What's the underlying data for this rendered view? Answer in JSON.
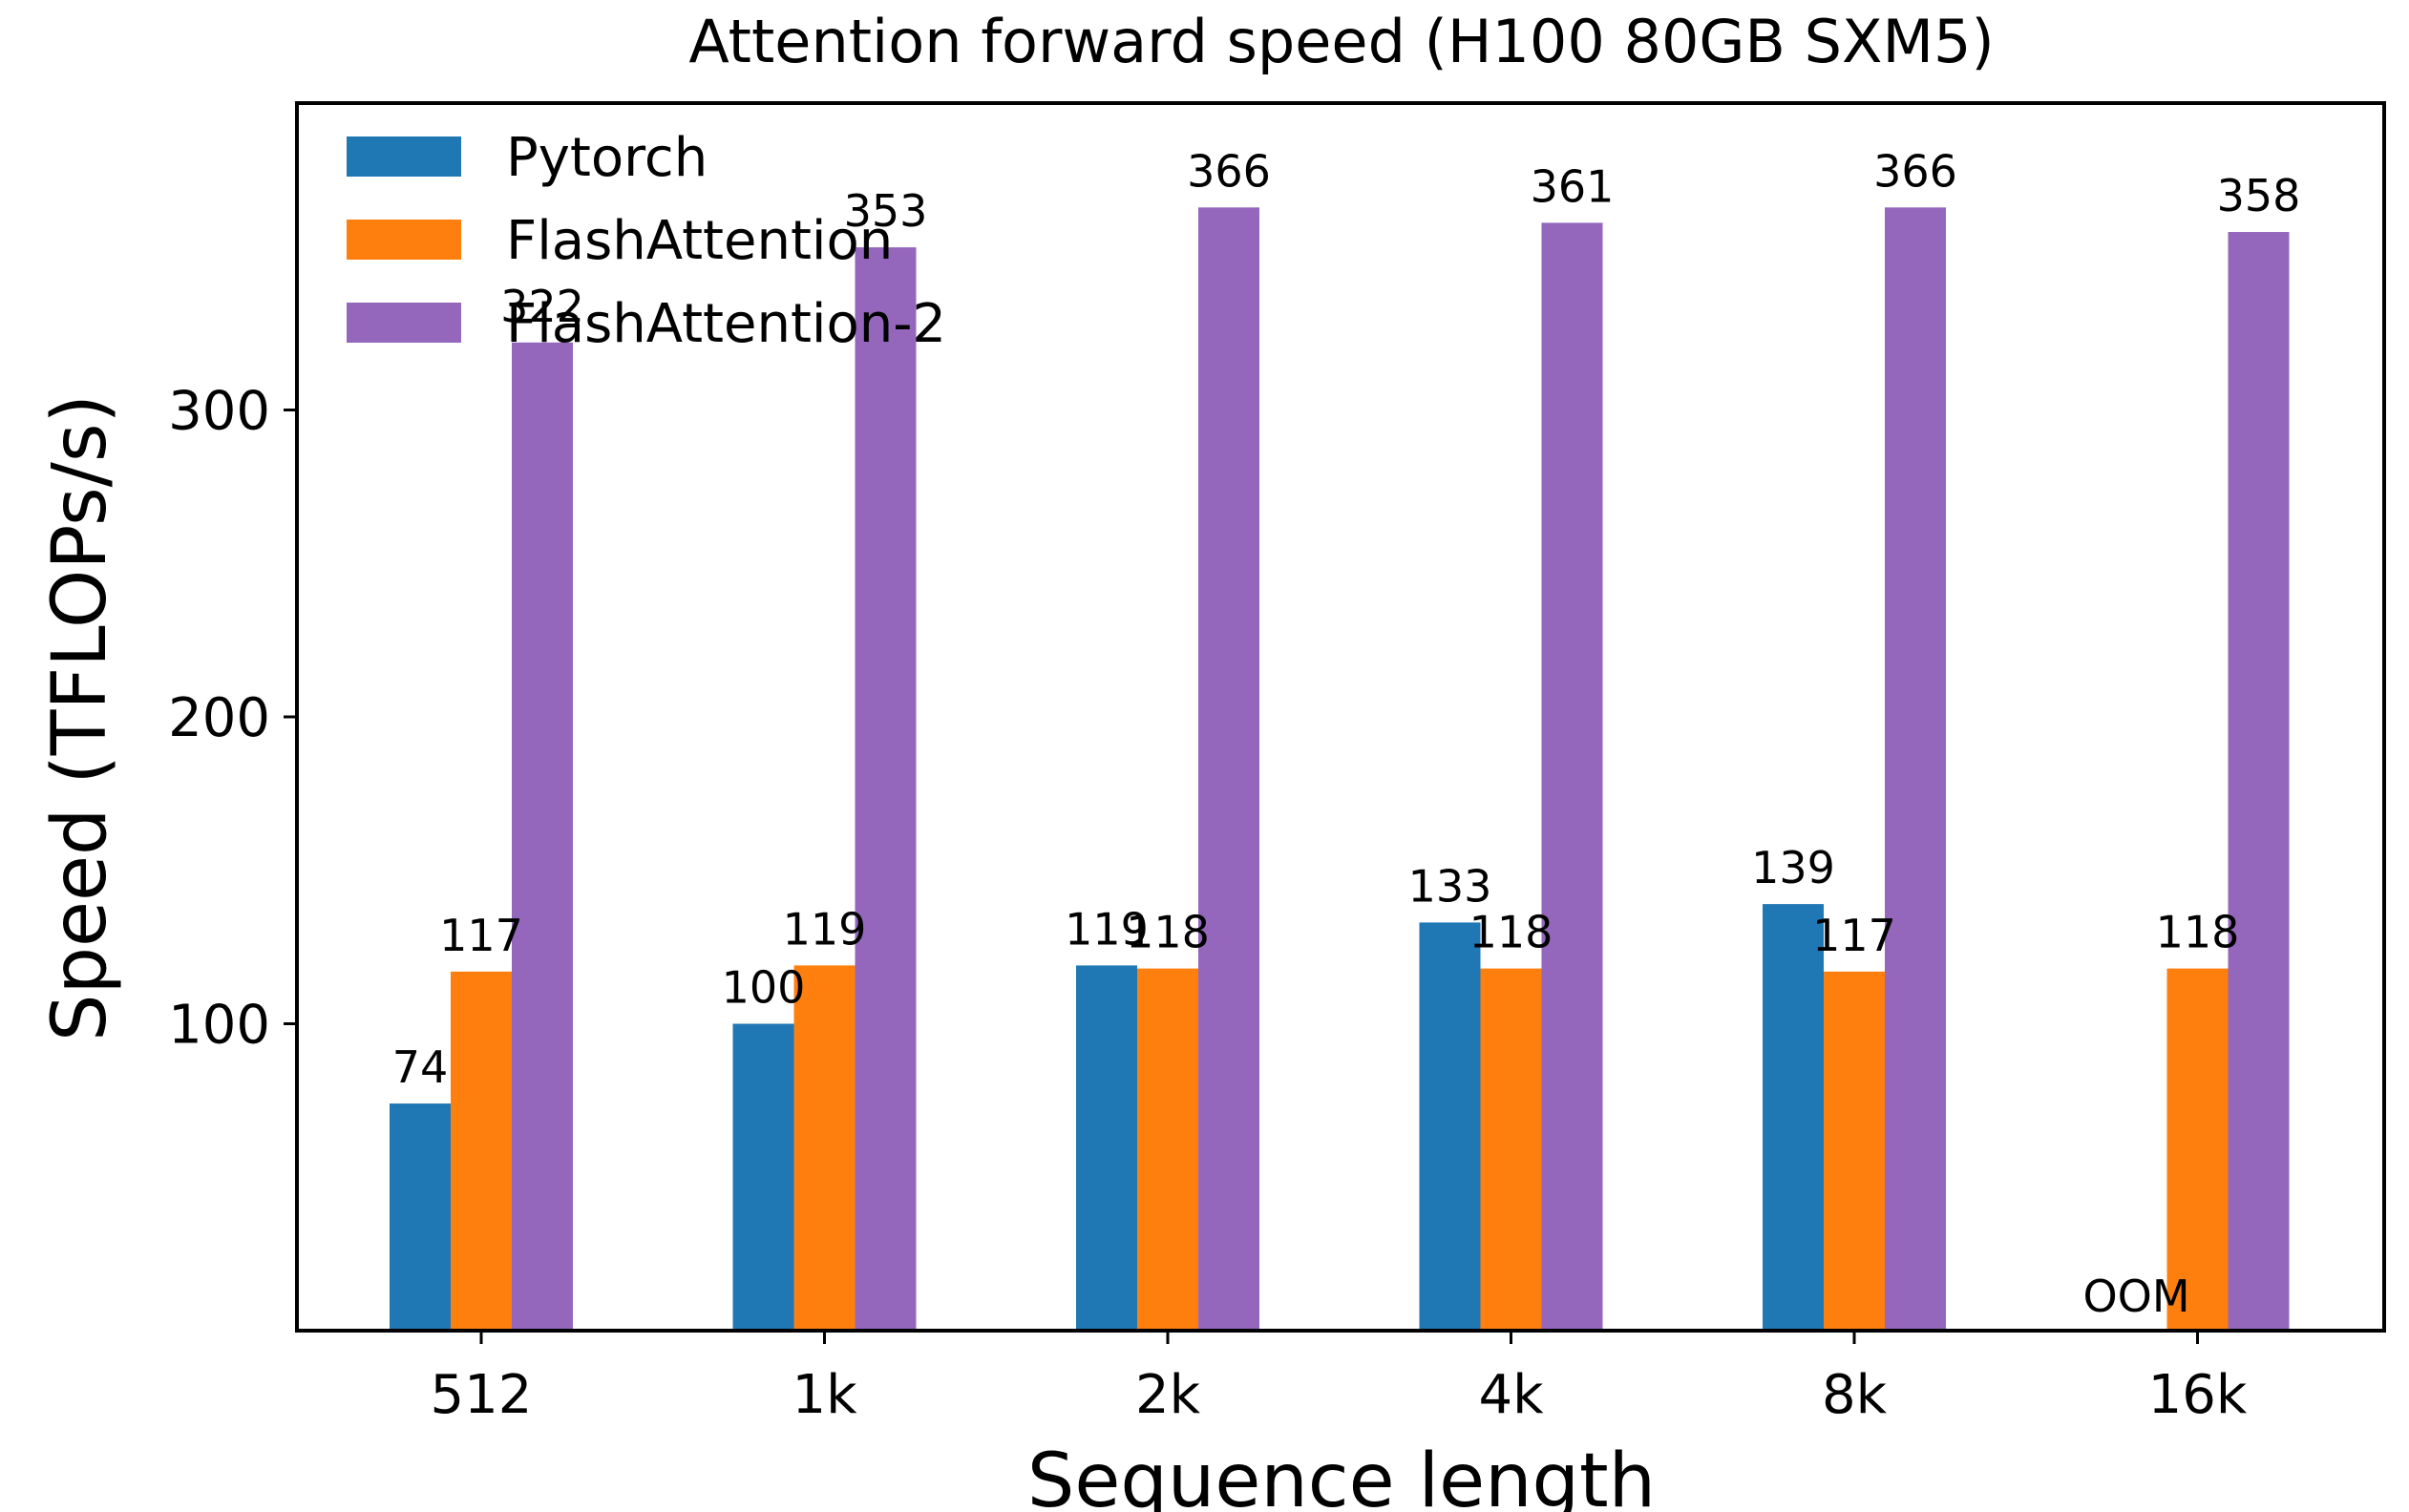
{
  "chart_data": {
    "type": "bar",
    "title": "Attention forward speed (H100 80GB SXM5)",
    "xlabel": "Sequence length",
    "ylabel": "Speed (TFLOPs/s)",
    "categories": [
      "512",
      "1k",
      "2k",
      "4k",
      "8k",
      "16k"
    ],
    "ylim": [
      0,
      400
    ],
    "yticks": [
      100,
      200,
      300
    ],
    "grid": false,
    "legend_position": "top-left",
    "series": [
      {
        "name": "Pytorch",
        "color": "#1f77b4",
        "values": [
          74,
          100,
          119,
          133,
          139,
          null
        ],
        "labels": [
          "74",
          "100",
          "119",
          "133",
          "139",
          "OOM"
        ]
      },
      {
        "name": "FlashAttention",
        "color": "#ff7f0e",
        "values": [
          117,
          119,
          118,
          118,
          117,
          118
        ],
        "labels": [
          "117",
          "119",
          "118",
          "118",
          "117",
          "118"
        ]
      },
      {
        "name": "FlashAttention-2",
        "color": "#9467bd",
        "values": [
          322,
          353,
          366,
          361,
          366,
          358
        ],
        "labels": [
          "322",
          "353",
          "366",
          "361",
          "366",
          "358"
        ]
      }
    ]
  }
}
